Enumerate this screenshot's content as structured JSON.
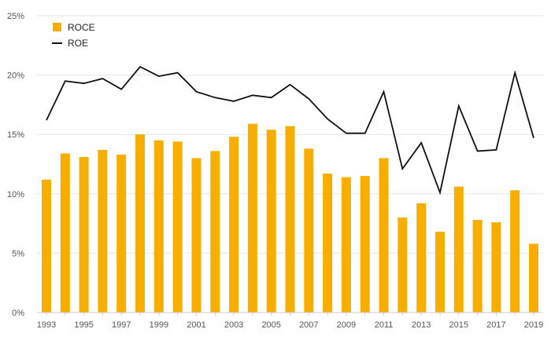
{
  "chart_data": {
    "type": "bar",
    "categories": [
      "1993",
      "1994",
      "1995",
      "1996",
      "1997",
      "1998",
      "1999",
      "2000",
      "2001",
      "2002",
      "2003",
      "2004",
      "2005",
      "2006",
      "2007",
      "2008",
      "2009",
      "2010",
      "2011",
      "2012",
      "2013",
      "2014",
      "2015",
      "2016",
      "2017",
      "2018",
      "2019"
    ],
    "x_tick_labels": [
      "1993",
      "1995",
      "1997",
      "1999",
      "2001",
      "2003",
      "2005",
      "2007",
      "2009",
      "2011",
      "2013",
      "2015",
      "2017",
      "2019"
    ],
    "y_tick_labels": [
      "0%",
      "5%",
      "10%",
      "15%",
      "20%",
      "25%"
    ],
    "ylim": [
      0,
      25
    ],
    "grid": "horizontal",
    "legend_position": "top-left",
    "series": [
      {
        "name": "ROCE",
        "kind": "bar",
        "color": "#F7AE00",
        "values": [
          11.2,
          13.4,
          13.1,
          13.7,
          13.3,
          15.0,
          14.5,
          14.4,
          13.0,
          13.6,
          14.8,
          15.9,
          15.4,
          15.7,
          13.8,
          11.7,
          11.4,
          11.5,
          13.0,
          8.0,
          9.2,
          6.8,
          10.6,
          7.8,
          7.6,
          10.3,
          5.8
        ]
      },
      {
        "name": "ROE",
        "kind": "line",
        "color": "#111111",
        "values": [
          16.2,
          19.5,
          19.3,
          19.7,
          18.8,
          20.7,
          19.9,
          20.2,
          18.6,
          18.1,
          17.8,
          18.3,
          18.1,
          19.2,
          18.0,
          16.3,
          15.1,
          15.1,
          18.6,
          12.1,
          14.3,
          10.1,
          17.4,
          13.6,
          13.7,
          20.2,
          14.7
        ]
      }
    ]
  }
}
